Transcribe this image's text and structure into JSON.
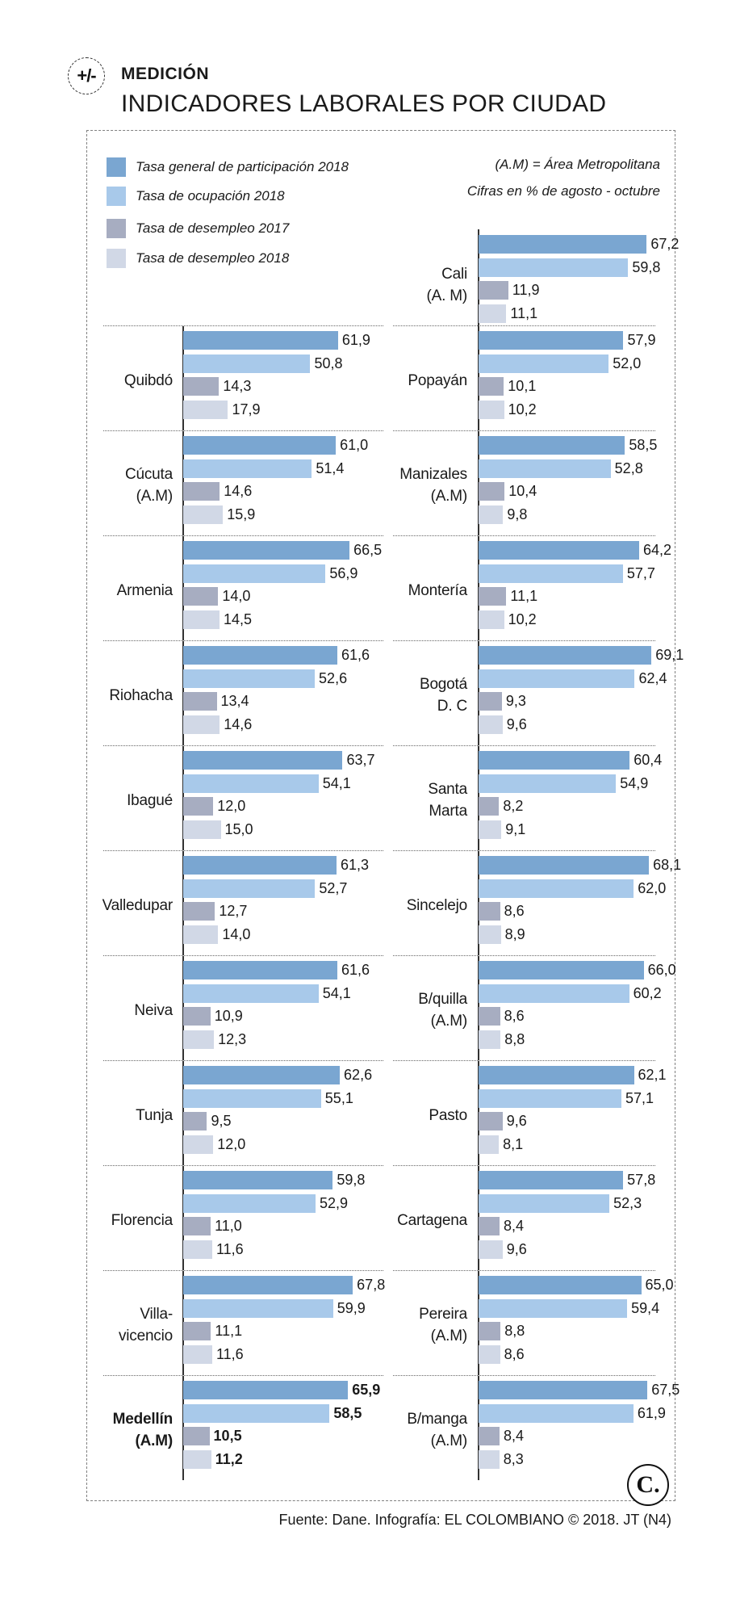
{
  "header": {
    "icon_text": "+/-",
    "kicker": "MEDICIÓN",
    "title": "INDICADORES LABORALES POR CIUDAD"
  },
  "notes": {
    "line1": "(A.M) = Área Metropolitana",
    "line2": "Cifras en % de agosto - octubre"
  },
  "footer": {
    "source": "Fuente: Dane. Infografía: EL COLOMBIANO © 2018. JT (N4)",
    "logo_text": "C."
  },
  "chart_data": {
    "type": "bar",
    "orientation": "horizontal",
    "title": "INDICADORES LABORALES POR CIUDAD",
    "unit": "%",
    "period": "agosto - octubre",
    "series": [
      {
        "name": "Tasa general de participación 2018",
        "color": "#7aa6d1"
      },
      {
        "name": "Tasa de ocupación 2018",
        "color": "#a8c9ea"
      },
      {
        "name": "Tasa de desempleo 2017",
        "color": "#a7adc1"
      },
      {
        "name": "Tasa de desempleo 2018",
        "color": "#d1d8e6"
      }
    ],
    "cities": [
      {
        "name": [
          "Cali",
          "(A. M)"
        ],
        "values": [
          "67,2",
          "59,8",
          "11,9",
          "11,1"
        ],
        "highlight": false
      },
      {
        "name": [
          "Quibdó"
        ],
        "values": [
          "61,9",
          "50,8",
          "14,3",
          "17,9"
        ],
        "highlight": false
      },
      {
        "name": [
          "Cúcuta",
          "(A.M)"
        ],
        "values": [
          "61,0",
          "51,4",
          "14,6",
          "15,9"
        ],
        "highlight": false
      },
      {
        "name": [
          "Armenia"
        ],
        "values": [
          "66,5",
          "56,9",
          "14,0",
          "14,5"
        ],
        "highlight": false
      },
      {
        "name": [
          "Riohacha"
        ],
        "values": [
          "61,6",
          "52,6",
          "13,4",
          "14,6"
        ],
        "highlight": false
      },
      {
        "name": [
          "Ibagué"
        ],
        "values": [
          "63,7",
          "54,1",
          "12,0",
          "15,0"
        ],
        "highlight": false
      },
      {
        "name": [
          "Valledupar"
        ],
        "values": [
          "61,3",
          "52,7",
          "12,7",
          "14,0"
        ],
        "highlight": false
      },
      {
        "name": [
          "Neiva"
        ],
        "values": [
          "61,6",
          "54,1",
          "10,9",
          "12,3"
        ],
        "highlight": false
      },
      {
        "name": [
          "Tunja"
        ],
        "values": [
          "62,6",
          "55,1",
          "9,5",
          "12,0"
        ],
        "highlight": false
      },
      {
        "name": [
          "Florencia"
        ],
        "values": [
          "59,8",
          "52,9",
          "11,0",
          "11,6"
        ],
        "highlight": false
      },
      {
        "name": [
          "Villa-",
          "vicencio"
        ],
        "values": [
          "67,8",
          "59,9",
          "11,1",
          "11,6"
        ],
        "highlight": false
      },
      {
        "name": [
          "Medellín",
          "(A.M)"
        ],
        "values": [
          "65,9",
          "58,5",
          "10,5",
          "11,2"
        ],
        "highlight": true
      },
      {
        "name": [
          "Popayán"
        ],
        "values": [
          "57,9",
          "52,0",
          "10,1",
          "10,2"
        ],
        "highlight": false
      },
      {
        "name": [
          "Manizales",
          "(A.M)"
        ],
        "values": [
          "58,5",
          "52,8",
          "10,4",
          "9,8"
        ],
        "highlight": false
      },
      {
        "name": [
          "Montería"
        ],
        "values": [
          "64,2",
          "57,7",
          "11,1",
          "10,2"
        ],
        "highlight": false
      },
      {
        "name": [
          "Bogotá",
          "D. C"
        ],
        "values": [
          "69,1",
          "62,4",
          "9,3",
          "9,6"
        ],
        "highlight": false
      },
      {
        "name": [
          "Santa",
          "Marta"
        ],
        "values": [
          "60,4",
          "54,9",
          "8,2",
          "9,1"
        ],
        "highlight": false
      },
      {
        "name": [
          "Sincelejo"
        ],
        "values": [
          "68,1",
          "62,0",
          "8,6",
          "8,9"
        ],
        "highlight": false
      },
      {
        "name": [
          "B/quilla",
          "(A.M)"
        ],
        "values": [
          "66,0",
          "60,2",
          "8,6",
          "8,8"
        ],
        "highlight": false
      },
      {
        "name": [
          "Pasto"
        ],
        "values": [
          "62,1",
          "57,1",
          "9,6",
          "8,1"
        ],
        "highlight": false
      },
      {
        "name": [
          "Cartagena"
        ],
        "values": [
          "57,8",
          "52,3",
          "8,4",
          "9,6"
        ],
        "highlight": false
      },
      {
        "name": [
          "Pereira",
          "(A.M)"
        ],
        "values": [
          "65,0",
          "59,4",
          "8,8",
          "8,6"
        ],
        "highlight": false
      },
      {
        "name": [
          "B/manga",
          "(A.M)"
        ],
        "values": [
          "67,5",
          "61,9",
          "8,4",
          "8,3"
        ],
        "highlight": false
      }
    ]
  }
}
